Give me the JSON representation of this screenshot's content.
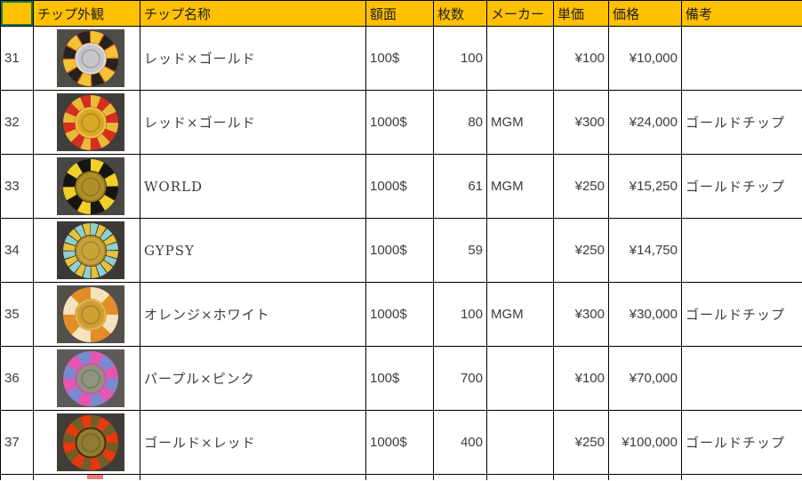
{
  "colors": {
    "header_bg": "#FFC000",
    "grid_line": "#000000",
    "active_cell_border": "#1F7244",
    "name_text": "#5a5f66",
    "next_row_sliver": "#e87a74"
  },
  "table": {
    "columns": [
      "",
      "チップ外観",
      "チップ名称",
      "額面",
      "枚数",
      "メーカー",
      "単価",
      "価格",
      "備考"
    ],
    "rows": [
      {
        "num": "31",
        "name": "レッド×ゴールド",
        "denomination": "100$",
        "count": "100",
        "maker": "",
        "unit_price": "¥100",
        "price": "¥10,000",
        "note": "",
        "chip": {
          "label": "red-gold-chip-silver-center",
          "bg": "#4f4b47",
          "base": "#e06018",
          "spots": "#f2c435",
          "spots2": "#26231f",
          "spot_count": 6,
          "center": "#c6c6ca",
          "ring": "#dcdce0"
        }
      },
      {
        "num": "32",
        "name": "レッド×ゴールド",
        "denomination": "1000$",
        "count": "80",
        "maker": "MGM",
        "unit_price": "¥300",
        "price": "¥24,000",
        "note": "ゴールドチップ",
        "chip": {
          "label": "red-gold-chip",
          "bg": "#413d3a",
          "base": "#d3301f",
          "spots": "#e9ba39",
          "spots2": "",
          "spot_count": 8,
          "center": "#d9a827",
          "ring": "#ecc84d"
        }
      },
      {
        "num": "33",
        "name": "WORLD",
        "denomination": "1000$",
        "count": "61",
        "maker": "MGM",
        "unit_price": "¥250",
        "price": "¥15,250",
        "note": "ゴールドチップ",
        "chip": {
          "label": "black-yellow-chip",
          "bg": "#4a4643",
          "base": "#17150f",
          "spots": "#f0d028",
          "spots2": "",
          "spot_count": 6,
          "center": "#af9028",
          "ring": "#8a7220"
        }
      },
      {
        "num": "34",
        "name": "GYPSY",
        "denomination": "1000$",
        "count": "59",
        "maker": "",
        "unit_price": "¥250",
        "price": "¥14,750",
        "note": "",
        "chip": {
          "label": "black-blue-gold-chip",
          "bg": "#3b3835",
          "base": "#1d1b16",
          "spots": "#8fd0cf",
          "spots2": "#e6c23c",
          "spot_count": 10,
          "center": "#c9a23a",
          "ring": "#a3832a"
        }
      },
      {
        "num": "35",
        "name": "オレンジ×ホワイト",
        "denomination": "1000$",
        "count": "100",
        "maker": "MGM",
        "unit_price": "¥300",
        "price": "¥30,000",
        "note": "ゴールドチップ",
        "chip": {
          "label": "orange-white-chip",
          "bg": "#534f4b",
          "base": "#e28d28",
          "spots": "#f4e4be",
          "spots2": "",
          "spot_count": 4,
          "center": "#cf9e35",
          "ring": "#e2b551"
        }
      },
      {
        "num": "36",
        "name": "パープル×ピンク",
        "denomination": "100$",
        "count": "700",
        "maker": "",
        "unit_price": "¥100",
        "price": "¥70,000",
        "note": "",
        "chip": {
          "label": "purple-pink-chip",
          "bg": "#5c5956",
          "base": "#7d88d0",
          "spots": "#e556ae",
          "spots2": "",
          "spot_count": 6,
          "center": "#90947f",
          "ring": "#d84fa0"
        }
      },
      {
        "num": "37",
        "name": "ゴールド×レッド",
        "denomination": "1000$",
        "count": "400",
        "maker": "",
        "unit_price": "¥250",
        "price": "¥100,000",
        "note": "ゴールドチップ",
        "chip": {
          "label": "gold-red-chip",
          "bg": "#403c38",
          "base": "#e8380e",
          "spots": "#6f5f26",
          "spots2": "",
          "spot_count": 8,
          "center": "#8f7c2e",
          "ring": "#3a3416"
        }
      }
    ]
  }
}
